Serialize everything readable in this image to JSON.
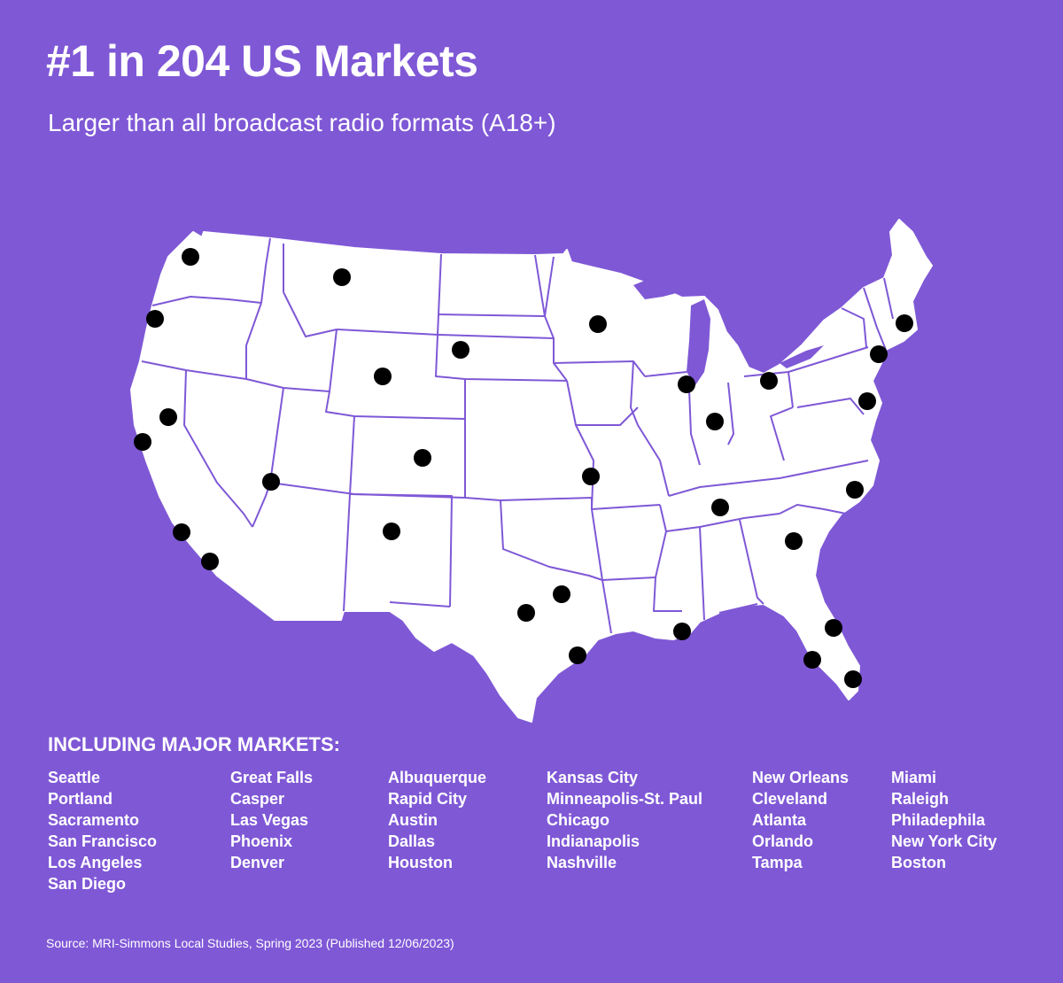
{
  "headline": "#1 in 204 US Markets",
  "subheadline": "Larger than all broadcast radio formats (A18+)",
  "markets_heading": "INCLUDING MAJOR MARKETS:",
  "market_columns": [
    [
      "Seattle",
      "Portland",
      "Sacramento",
      "San Francisco",
      "Los Angeles",
      "San Diego"
    ],
    [
      "Great Falls",
      "Casper",
      "Las Vegas",
      "Phoenix",
      "Denver"
    ],
    [
      "Albuquerque",
      "Rapid City",
      "Austin",
      "Dallas",
      "Houston"
    ],
    [
      "Kansas City",
      "Minneapolis-St. Paul",
      "Chicago",
      "Indianapolis",
      "Nashville"
    ],
    [
      "New Orleans",
      "Cleveland",
      "Atlanta",
      "Orlando",
      "Tampa"
    ],
    [
      "Miami",
      "Raleigh",
      "Philadephila",
      "New York City",
      "Boston"
    ]
  ],
  "source": "Source: MRI-Simmons Local Studies, Spring 2023 (Published 12/06/2023)",
  "colors": {
    "background": "#7f58d6",
    "map_fill": "#ffffff",
    "state_border": "#7f58d6",
    "marker": "#000000",
    "text": "#ffffff"
  }
}
